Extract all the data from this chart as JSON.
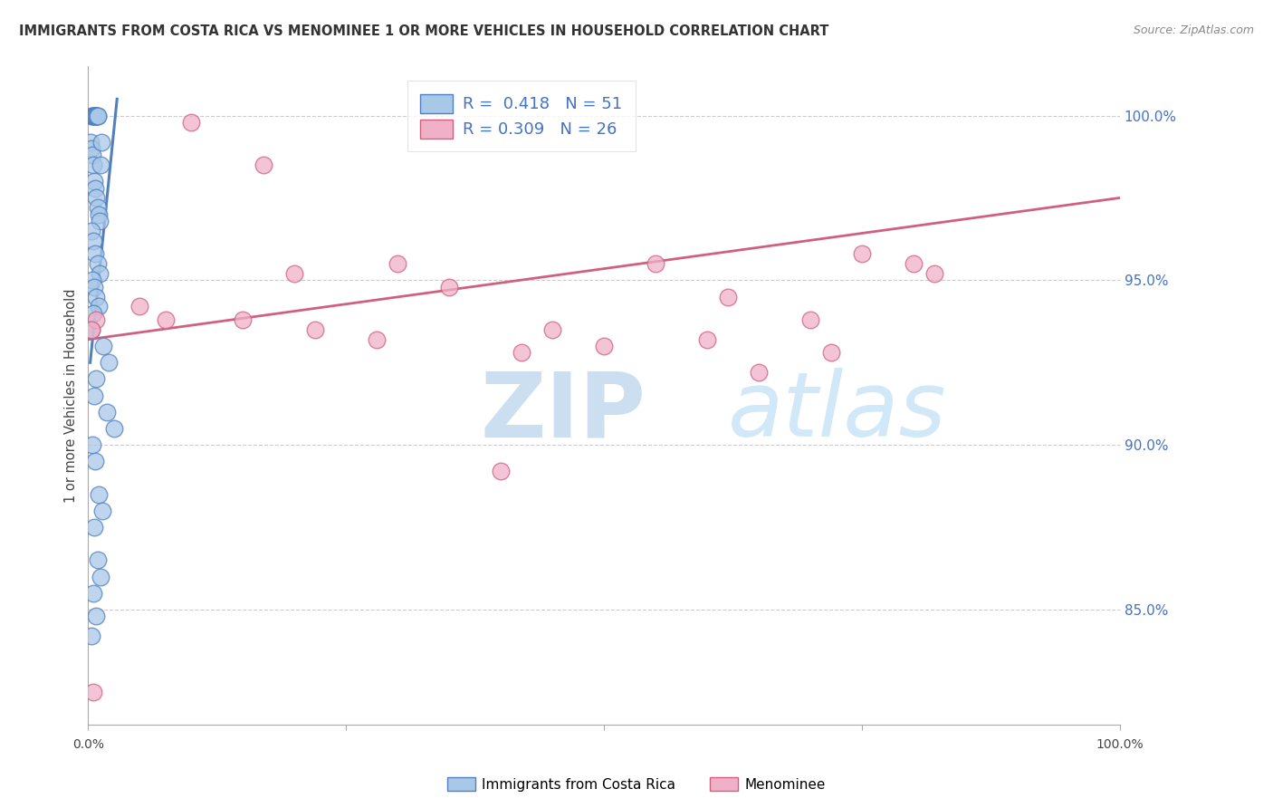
{
  "title": "IMMIGRANTS FROM COSTA RICA VS MENOMINEE 1 OR MORE VEHICLES IN HOUSEHOLD CORRELATION CHART",
  "source": "Source: ZipAtlas.com",
  "ylabel": "1 or more Vehicles in Household",
  "right_yticks": [
    85.0,
    90.0,
    95.0,
    100.0
  ],
  "legend_blue_r": "R =  0.418",
  "legend_blue_n": "N = 51",
  "legend_pink_r": "R = 0.309",
  "legend_pink_n": "N = 26",
  "blue_color": "#a8c8e8",
  "blue_edge_color": "#5080c0",
  "pink_color": "#f0b0c8",
  "pink_edge_color": "#d06080",
  "blue_scatter_x": [
    0.3,
    0.4,
    0.5,
    0.55,
    0.6,
    0.65,
    0.7,
    0.75,
    0.8,
    0.85,
    0.9,
    0.95,
    0.2,
    0.35,
    0.45,
    0.5,
    0.6,
    0.7,
    0.8,
    0.9,
    1.0,
    1.1,
    1.2,
    1.3,
    0.3,
    0.5,
    0.7,
    0.9,
    1.1,
    0.4,
    0.6,
    0.8,
    1.0,
    0.5,
    0.3,
    1.5,
    2.0,
    0.8,
    0.6,
    1.8,
    2.5,
    0.4,
    0.7,
    1.0,
    1.4,
    0.6,
    0.9,
    1.2,
    0.5,
    0.8,
    0.3
  ],
  "blue_scatter_y": [
    100.0,
    100.0,
    100.0,
    100.0,
    100.0,
    100.0,
    100.0,
    100.0,
    100.0,
    100.0,
    100.0,
    100.0,
    99.2,
    99.0,
    98.8,
    98.5,
    98.0,
    97.8,
    97.5,
    97.2,
    97.0,
    96.8,
    98.5,
    99.2,
    96.5,
    96.2,
    95.8,
    95.5,
    95.2,
    95.0,
    94.8,
    94.5,
    94.2,
    94.0,
    93.5,
    93.0,
    92.5,
    92.0,
    91.5,
    91.0,
    90.5,
    90.0,
    89.5,
    88.5,
    88.0,
    87.5,
    86.5,
    86.0,
    85.5,
    84.8,
    84.2
  ],
  "pink_scatter_x": [
    0.5,
    0.8,
    5.0,
    7.5,
    10.0,
    15.0,
    17.0,
    20.0,
    22.0,
    28.0,
    30.0,
    35.0,
    40.0,
    42.0,
    45.0,
    50.0,
    55.0,
    60.0,
    62.0,
    65.0,
    70.0,
    72.0,
    75.0,
    80.0,
    82.0,
    0.3
  ],
  "pink_scatter_y": [
    82.5,
    93.8,
    94.2,
    93.8,
    99.8,
    93.8,
    98.5,
    95.2,
    93.5,
    93.2,
    95.5,
    94.8,
    89.2,
    92.8,
    93.5,
    93.0,
    95.5,
    93.2,
    94.5,
    92.2,
    93.8,
    92.8,
    95.8,
    95.5,
    95.2,
    93.5
  ],
  "blue_trend_x": [
    0.2,
    2.8
  ],
  "blue_trend_y": [
    92.5,
    100.5
  ],
  "pink_trend_x": [
    0.0,
    100.0
  ],
  "pink_trend_y": [
    93.2,
    97.5
  ],
  "xlim": [
    0,
    100
  ],
  "ylim": [
    81.5,
    101.5
  ],
  "watermark_zip_color": "#ccdff0",
  "watermark_atlas_color": "#d0e8f8",
  "background_color": "#ffffff",
  "grid_color": "#cccccc"
}
